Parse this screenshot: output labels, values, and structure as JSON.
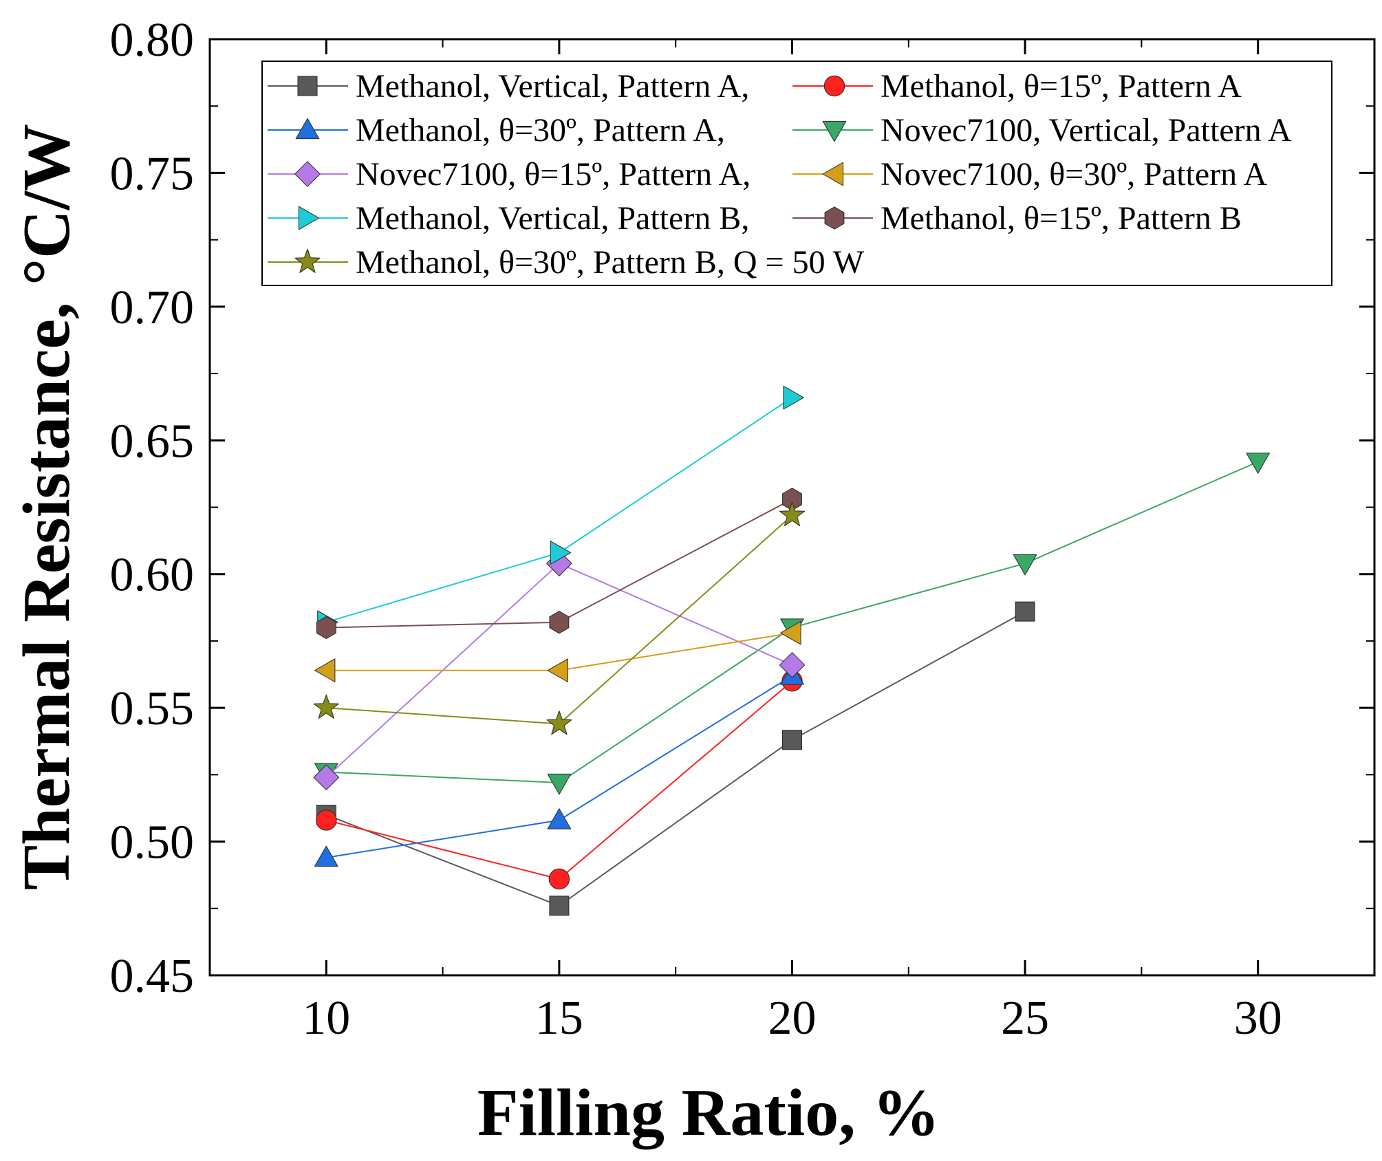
{
  "chart_data": {
    "type": "line",
    "title": "",
    "xlabel": "Filling Ratio, %",
    "ylabel": "Thermal Resistance, °C/W",
    "xlim": [
      7.5,
      32.5
    ],
    "ylim": [
      0.45,
      0.8
    ],
    "xticks": [
      10,
      15,
      20,
      25,
      30
    ],
    "xtick_labels": [
      "10",
      "15",
      "20",
      "25",
      "30"
    ],
    "xminor": [
      12.5,
      17.5,
      22.5,
      27.5
    ],
    "yticks": [
      0.45,
      0.5,
      0.55,
      0.6,
      0.65,
      0.7,
      0.75,
      0.8
    ],
    "ytick_labels": [
      "0.45",
      "0.50",
      "0.55",
      "0.60",
      "0.65",
      "0.70",
      "0.75",
      "0.80"
    ],
    "grid": false,
    "legend_position": "top-left",
    "series": [
      {
        "name": "Methanol, Vertical, Pattern A,",
        "marker": "square",
        "color": "#595959",
        "x": [
          10,
          15,
          20,
          25
        ],
        "y": [
          0.51,
          0.476,
          0.538,
          0.586
        ]
      },
      {
        "name": "Methanol, θ=15º, Pattern A",
        "marker": "circle",
        "color": "#ff2020",
        "x": [
          10,
          15,
          20
        ],
        "y": [
          0.508,
          0.486,
          0.56
        ]
      },
      {
        "name": "Methanol, θ=30º, Pattern A,",
        "marker": "triangle-up",
        "color": "#1f6fe0",
        "x": [
          10,
          15,
          20
        ],
        "y": [
          0.494,
          0.508,
          0.562
        ]
      },
      {
        "name": "Novec7100, Vertical, Pattern A",
        "marker": "triangle-down",
        "color": "#3aa865",
        "x": [
          10,
          15,
          20,
          25,
          30
        ],
        "y": [
          0.526,
          0.522,
          0.58,
          0.604,
          0.642
        ]
      },
      {
        "name": "Novec7100, θ=15º, Pattern A,",
        "marker": "diamond",
        "color": "#b57ae8",
        "x": [
          10,
          15,
          20
        ],
        "y": [
          0.524,
          0.604,
          0.566
        ]
      },
      {
        "name": "Novec7100, θ=30º, Pattern A",
        "marker": "triangle-left",
        "color": "#d4a017",
        "x": [
          10,
          15,
          20
        ],
        "y": [
          0.564,
          0.564,
          0.578
        ]
      },
      {
        "name": "Methanol, Vertical, Pattern B,",
        "marker": "triangle-right",
        "color": "#1ecbd6",
        "x": [
          10,
          15,
          20
        ],
        "y": [
          0.582,
          0.608,
          0.666
        ]
      },
      {
        "name": "Methanol, θ=15º, Pattern B",
        "marker": "hexagon",
        "color": "#7a5150",
        "x": [
          10,
          15,
          20
        ],
        "y": [
          0.58,
          0.582,
          0.628
        ]
      },
      {
        "name": "Methanol, θ=30º, Pattern B, Q = 50 W",
        "marker": "star",
        "color": "#8a8a16",
        "x": [
          10,
          15,
          20
        ],
        "y": [
          0.55,
          0.544,
          0.622
        ]
      }
    ]
  }
}
